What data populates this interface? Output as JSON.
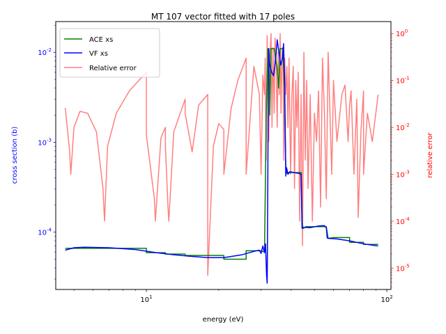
{
  "chart_data": {
    "type": "line",
    "title": "MT 107 vector fitted with 17 poles",
    "xlabel": "energy (eV)",
    "ylabel_left": "cross section (b)",
    "ylabel_right": "relative error",
    "x_scale": "log",
    "y_left_scale": "log",
    "y_right_scale": "log",
    "xlim": [
      4.2,
      104
    ],
    "ylim_left": [
      2.3e-05,
      0.022
    ],
    "ylim_right": [
      3.5e-06,
      1.8
    ],
    "x_ticks": [
      {
        "value": 10,
        "label": "10^1"
      },
      {
        "value": 100,
        "label": "10^2"
      }
    ],
    "y_left_ticks": [
      {
        "value": 0.0001,
        "label": "10^-4"
      },
      {
        "value": 0.001,
        "label": "10^-3"
      },
      {
        "value": 0.01,
        "label": "10^-2"
      }
    ],
    "y_right_ticks": [
      {
        "value": 1e-05,
        "label": "10^-5"
      },
      {
        "value": 0.0001,
        "label": "10^-4"
      },
      {
        "value": 0.001,
        "label": "10^-3"
      },
      {
        "value": 0.01,
        "label": "10^-2"
      },
      {
        "value": 0.1,
        "label": "10^-1"
      },
      {
        "value": 1,
        "label": "10^0"
      }
    ],
    "grid": false,
    "legend_position": "top-left",
    "colors": {
      "ace": "#008000",
      "vf": "#0000ff",
      "error": "#ff0000",
      "left_axis": "#0000ff",
      "right_axis": "#ff0000"
    },
    "series": [
      {
        "name": "ACE xs",
        "axis": "left",
        "color": "#008000",
        "x": [
          4.6,
          5.0,
          6.0,
          8.0,
          10.0,
          10.0,
          12.0,
          12.0,
          14.5,
          14.5,
          18.0,
          21.0,
          21.0,
          26.0,
          26.0,
          30.0,
          31.0,
          31.5,
          32.0,
          32.3,
          32.6,
          33.0,
          34.0,
          35.0,
          35.5,
          36.0,
          37.0,
          37.5,
          38.0,
          38.5,
          39.0,
          40.0,
          42.0,
          44.0,
          44.5,
          45.0,
          46.0,
          50.0,
          54.0,
          55.0,
          56.0,
          57.0,
          60.0,
          64.0,
          70.0,
          70.0,
          80.0,
          80.0,
          92.0
        ],
        "y": [
          6.6e-05,
          6.6e-05,
          6.6e-05,
          6.6e-05,
          6.6e-05,
          5.9e-05,
          5.9e-05,
          5.7e-05,
          5.7e-05,
          5.5e-05,
          5.5e-05,
          5.5e-05,
          5e-05,
          5e-05,
          6.2e-05,
          6.2e-05,
          6e-05,
          0.002,
          0.011,
          0.011,
          0.002,
          0.011,
          0.011,
          0.0065,
          0.004,
          0.011,
          0.011,
          0.004,
          0.0005,
          0.00045,
          0.00046,
          0.00046,
          0.00046,
          0.00046,
          0.00012,
          0.00011,
          0.000115,
          0.000115,
          0.000115,
          0.000115,
          0.000115,
          8.5e-05,
          8.7e-05,
          8.7e-05,
          8.7e-05,
          7.7e-05,
          7.7e-05,
          7.3e-05,
          7.3e-05
        ]
      },
      {
        "name": "VF xs",
        "axis": "left",
        "color": "#0000ff",
        "x": [
          4.6,
          5.0,
          5.5,
          7.0,
          9.0,
          11.0,
          13.0,
          15.0,
          18.0,
          21.0,
          25.0,
          28.0,
          29.5,
          30.0,
          30.5,
          31.0,
          31.3,
          31.6,
          31.8,
          32.0,
          32.1,
          32.3,
          32.5,
          32.8,
          33.2,
          33.8,
          34.5,
          35.0,
          35.6,
          36.2,
          36.8,
          37.2,
          37.6,
          38.0,
          38.3,
          38.8,
          39.5,
          41.0,
          43.0,
          44.0,
          44.4,
          44.8,
          46.0,
          48.0,
          52.0,
          55.0,
          56.0,
          56.5,
          57.5,
          62.0,
          70.0,
          80.0,
          92.0
        ],
        "y": [
          6.3e-05,
          6.7e-05,
          6.8e-05,
          6.7e-05,
          6.4e-05,
          5.9e-05,
          5.6e-05,
          5.4e-05,
          5.2e-05,
          5.2e-05,
          5.6e-05,
          6.1e-05,
          6.3e-05,
          5.8e-05,
          7e-05,
          5.9e-05,
          7.4e-05,
          3.4e-05,
          2.7e-05,
          0.0004,
          0.0025,
          0.011,
          0.0075,
          0.0068,
          0.006,
          0.0055,
          0.0085,
          0.0138,
          0.01,
          0.0072,
          0.0085,
          0.0125,
          0.0045,
          0.00042,
          0.00052,
          0.00044,
          0.00047,
          0.00046,
          0.00045,
          0.00044,
          0.00011,
          0.000112,
          0.000113,
          0.000112,
          0.000117,
          0.000118,
          0.000112,
          8.6e-05,
          8.5e-05,
          8.4e-05,
          8e-05,
          7.4e-05,
          7e-05
        ]
      },
      {
        "name": "Relative error",
        "axis": "right",
        "color": "#ff0000",
        "opacity": 0.5,
        "x": [
          4.6,
          4.8,
          4.85,
          5.0,
          5.3,
          5.7,
          6.2,
          6.6,
          6.7,
          6.9,
          7.5,
          8.5,
          10.0,
          10.0,
          10.8,
          10.9,
          11.5,
          12.0,
          12.0,
          12.3,
          12.4,
          13.0,
          14.5,
          14.5,
          15.5,
          16.5,
          18.0,
          18.0,
          19.0,
          20.0,
          21.0,
          21.0,
          22.5,
          24.0,
          26.0,
          26.0,
          28.0,
          29.5,
          30.0,
          30.5,
          31.0,
          31.2,
          31.5,
          31.8,
          32.0,
          32.3,
          32.6,
          33.0,
          33.3,
          33.6,
          34.0,
          34.3,
          34.6,
          35.0,
          35.3,
          35.7,
          36.0,
          36.3,
          36.7,
          37.0,
          37.3,
          37.6,
          38.0,
          38.4,
          38.8,
          39.2,
          39.8,
          40.3,
          40.8,
          41.3,
          41.8,
          42.3,
          42.8,
          43.4,
          44.0,
          44.6,
          45.2,
          45.8,
          46.4,
          47.0,
          48.0,
          49.0,
          50.0,
          51.0,
          52.0,
          53.0,
          54.0,
          55.0,
          56.0,
          57.0,
          58.0,
          59.0,
          60.0,
          62.0,
          65.0,
          67.0,
          69.0,
          70.0,
          71.0,
          73.0,
          75.0,
          76.0,
          78.0,
          80.0,
          80.0,
          83.0,
          87.0,
          92.0
        ],
        "y": [
          0.026,
          0.003,
          0.001,
          0.01,
          0.022,
          0.02,
          0.008,
          0.0005,
          0.0001,
          0.004,
          0.02,
          0.06,
          0.15,
          0.007,
          0.0003,
          0.0001,
          0.006,
          0.01,
          0.004,
          0.0002,
          0.0001,
          0.008,
          0.04,
          0.02,
          0.003,
          0.03,
          0.05,
          7e-06,
          0.004,
          0.012,
          0.009,
          0.001,
          0.025,
          0.1,
          0.3,
          0.001,
          0.2,
          0.05,
          0.001,
          0.13,
          0.05,
          0.3,
          0.002,
          0.9,
          0.05,
          0.005,
          0.3,
          1.0,
          0.01,
          0.5,
          0.02,
          0.8,
          0.3,
          0.01,
          0.4,
          0.05,
          1.0,
          0.02,
          0.5,
          0.3,
          0.002,
          0.3,
          0.05,
          0.2,
          0.01,
          0.3,
          0.001,
          0.05,
          0.2,
          0.0005,
          0.1,
          0.01,
          0.15,
          0.0001,
          0.05,
          3e-05,
          0.4,
          0.002,
          0.1,
          0.0005,
          0.05,
          0.0001,
          0.02,
          0.005,
          0.06,
          0.0002,
          0.3,
          0.02,
          0.0003,
          0.4,
          0.02,
          0.001,
          0.1,
          0.005,
          0.05,
          0.08,
          0.005,
          0.03,
          0.06,
          0.001,
          0.04,
          0.00012,
          0.008,
          0.06,
          0.001,
          0.02,
          0.005,
          0.05
        ]
      }
    ]
  }
}
